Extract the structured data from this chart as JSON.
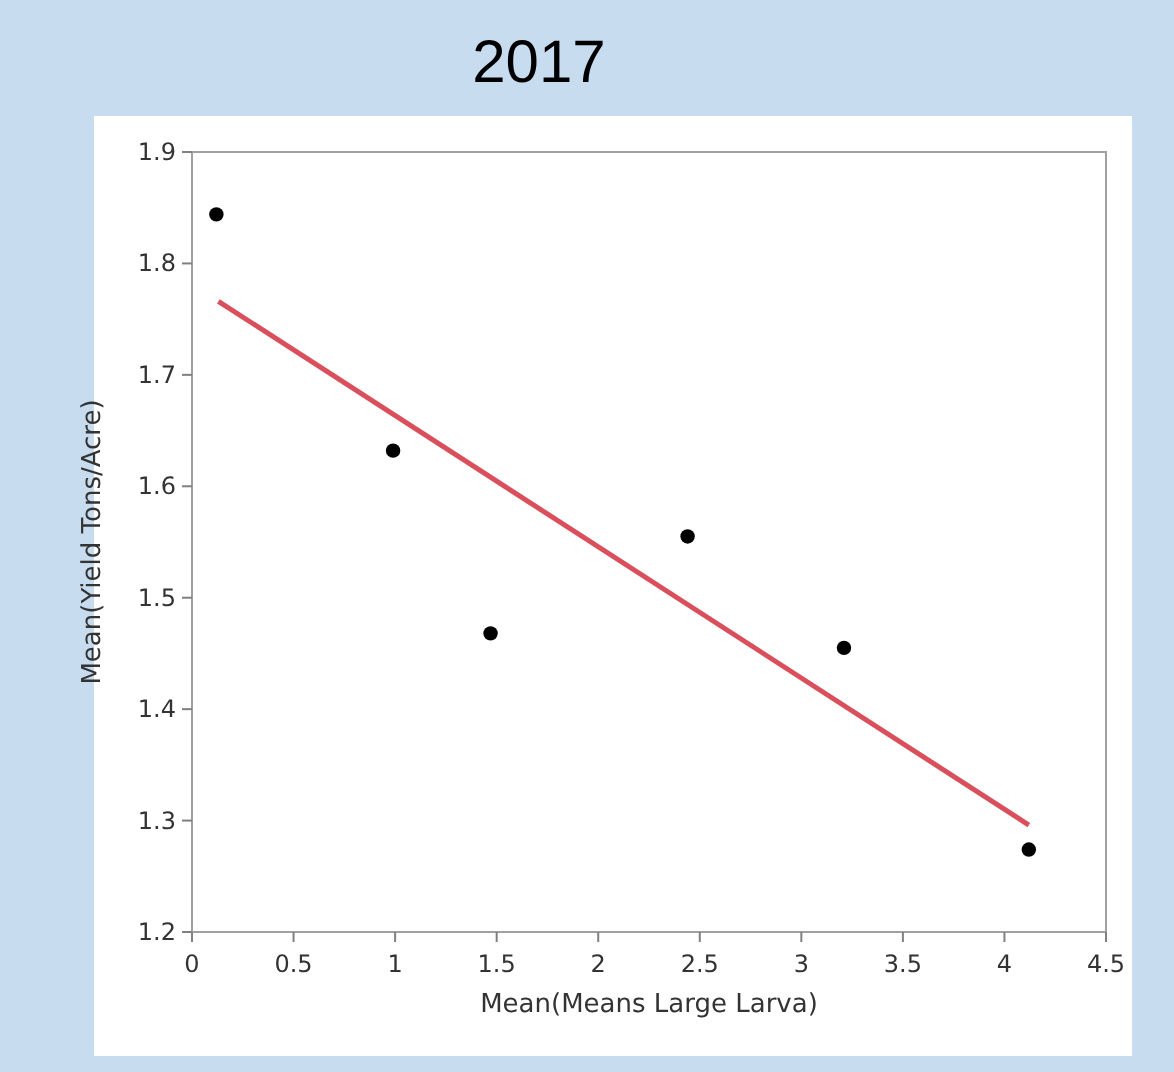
{
  "chart_data": {
    "type": "scatter",
    "title": "2017",
    "xlabel": "Mean(Means Large Larva)",
    "ylabel": "Mean(Yield Tons/Acre)",
    "xlim": [
      0,
      4.5
    ],
    "xticks": [
      0,
      0.5,
      1,
      1.5,
      2,
      2.5,
      3,
      3.5,
      4,
      4.5
    ],
    "ylim": [
      1.2,
      1.9
    ],
    "yticks": [
      1.2,
      1.3,
      1.4,
      1.5,
      1.6,
      1.7,
      1.8,
      1.9
    ],
    "marker": "circle",
    "series": [
      {
        "color": "#000000",
        "x": [
          0.12,
          0.99,
          1.47,
          2.44,
          3.21,
          4.12
        ],
        "values": [
          1.844,
          1.632,
          1.468,
          1.555,
          1.455,
          1.274
        ]
      },
      {
        "type": "line",
        "color": "#d9505c",
        "marker": "none",
        "line_style": "solid",
        "x": [
          0.13,
          4.12
        ],
        "values": [
          1.766,
          1.296
        ]
      }
    ]
  }
}
